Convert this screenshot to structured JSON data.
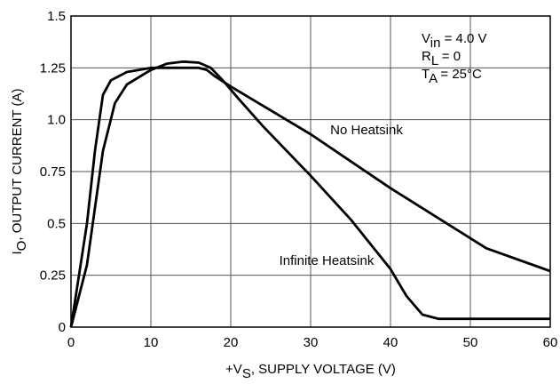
{
  "chart_data": {
    "type": "line",
    "xlabel": [
      {
        "text": "+V"
      },
      {
        "text": "S",
        "sub": true
      },
      {
        "text": ", SUPPLY VOLTAGE (V)"
      }
    ],
    "ylabel": [
      {
        "text": "I"
      },
      {
        "text": "O",
        "sub": true
      },
      {
        "text": ", OUTPUT CURRENT (A)"
      }
    ],
    "annotations": [
      [
        {
          "text": "V"
        },
        {
          "text": "in",
          "sub": true
        },
        {
          "text": " = 4.0 V"
        }
      ],
      [
        {
          "text": "R"
        },
        {
          "text": "L",
          "sub": true
        },
        {
          "text": " = 0"
        }
      ],
      [
        {
          "text": "T"
        },
        {
          "text": "A",
          "sub": true
        },
        {
          "text": " = 25°C"
        }
      ]
    ],
    "xlim": [
      0,
      60
    ],
    "xticks": [
      0,
      10,
      20,
      30,
      40,
      50,
      60
    ],
    "ylim": [
      0,
      1.5
    ],
    "yticks": [
      0,
      0.25,
      0.5,
      0.75,
      {
        "value": 1,
        "label": "1.0"
      },
      1.25,
      {
        "value": 1.5,
        "label": "1.5"
      }
    ],
    "grid": true,
    "series": [
      {
        "name": "No Heatsink",
        "color": "#000000",
        "x": [
          0,
          2,
          3,
          4,
          5,
          7,
          10,
          16,
          17,
          18,
          20,
          30,
          40,
          52,
          60
        ],
        "values": [
          0,
          0.5,
          0.85,
          1.12,
          1.19,
          1.23,
          1.25,
          1.25,
          1.24,
          1.21,
          1.16,
          0.93,
          0.67,
          0.38,
          0.27
        ]
      },
      {
        "name": "Infinite Heatsink",
        "color": "#000000",
        "x": [
          0,
          2,
          4,
          5.5,
          7,
          10,
          12,
          14,
          16,
          17.5,
          19,
          21,
          24,
          30,
          35,
          40,
          42,
          44,
          46,
          60
        ],
        "values": [
          0,
          0.3,
          0.85,
          1.08,
          1.17,
          1.24,
          1.27,
          1.28,
          1.275,
          1.25,
          1.19,
          1.1,
          0.97,
          0.73,
          0.52,
          0.28,
          0.15,
          0.06,
          0.04,
          0.04
        ]
      }
    ]
  }
}
